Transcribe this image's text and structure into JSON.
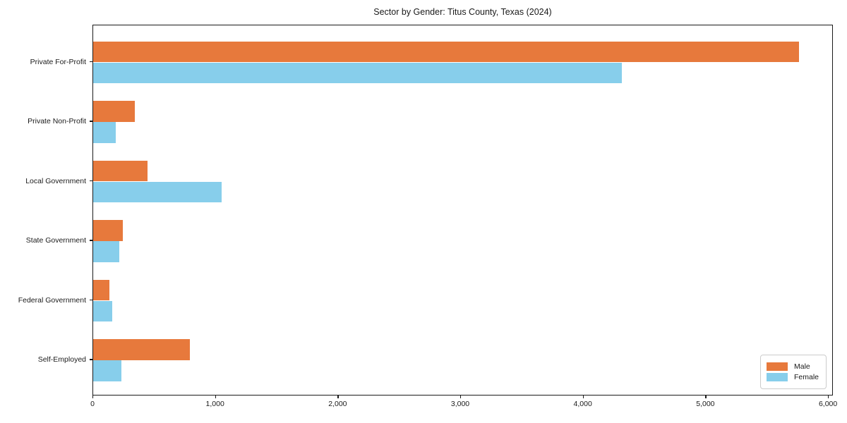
{
  "chart_data": {
    "type": "bar",
    "orientation": "horizontal",
    "title": "Sector by Gender: Titus County, Texas (2024)",
    "categories": [
      "Private For-Profit",
      "Private Non-Profit",
      "Local Government",
      "State Government",
      "Federal Government",
      "Self-Employed"
    ],
    "series": [
      {
        "name": "Male",
        "color": "#e7793c",
        "values": [
          5760,
          340,
          445,
          240,
          130,
          790
        ]
      },
      {
        "name": "Female",
        "color": "#87ceeb",
        "values": [
          4310,
          185,
          1045,
          215,
          155,
          230
        ]
      }
    ],
    "xlim": [
      0,
      6040
    ],
    "x_ticks": [
      {
        "value": 0,
        "label": "0"
      },
      {
        "value": 1000,
        "label": "1,000"
      },
      {
        "value": 2000,
        "label": "2,000"
      },
      {
        "value": 3000,
        "label": "3,000"
      },
      {
        "value": 4000,
        "label": "4,000"
      },
      {
        "value": 5000,
        "label": "5,000"
      },
      {
        "value": 6000,
        "label": "6,000"
      }
    ],
    "legend_position": "lower right",
    "grid": false,
    "xlabel": "",
    "ylabel": ""
  }
}
